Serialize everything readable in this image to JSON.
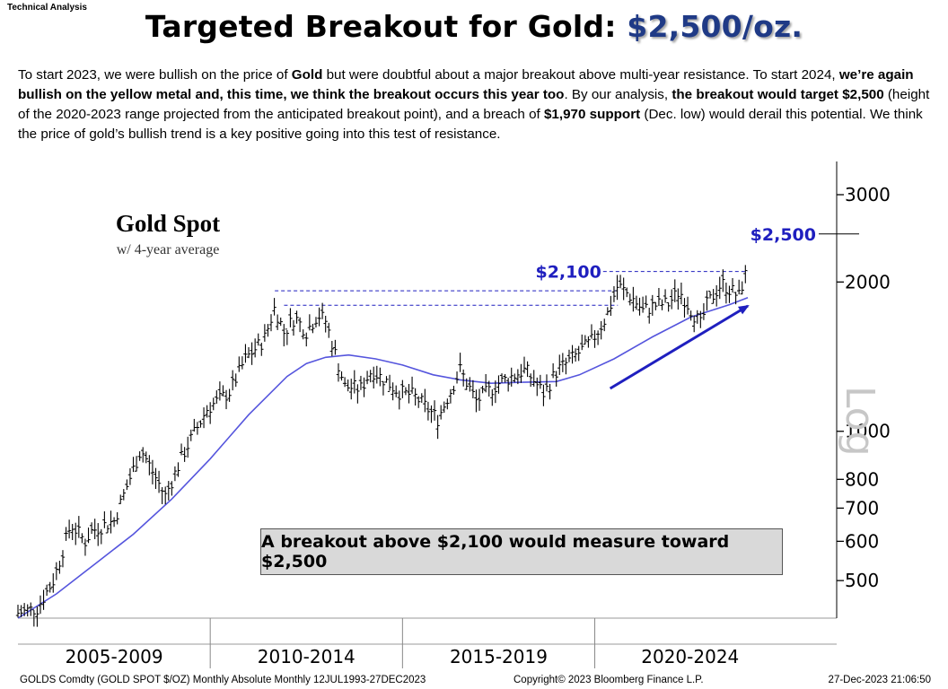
{
  "header": {
    "section_tag": "Technical Analysis",
    "title_prefix": "Targeted Breakout for Gold: ",
    "title_target": "$2,500/oz."
  },
  "intro": {
    "p1": "To start 2023, we were bullish on the price of ",
    "p2": "Gold",
    "p3": " but were doubtful about a major breakout above multi-year resistance.  To start 2024, ",
    "p4": "we’re again bullish on the yellow metal and, this time, we think the breakout occurs this year too",
    "p5": ".  By our analysis, ",
    "p6": "the breakout would target $2,500",
    "p7": " (height of the 2020-2023 range projected from the anticipated breakout point), and a breach of ",
    "p8": "$1,970 support",
    "p9": " (Dec. low) would derail this potential.  We think the price of gold’s bullish trend is a key positive going into this test of resistance."
  },
  "colors": {
    "accent": "#1f1fbf",
    "moving_average": "#5555dd",
    "price": "#000000",
    "callout_bg": "#d9d9d9"
  },
  "chart_data": {
    "type": "line",
    "title": "Gold Spot",
    "subtitle": "w/ 4-year average",
    "scale": "log",
    "scale_label": "Log",
    "ylim": [
      420,
      3500
    ],
    "y_ticks": [
      3000,
      2000,
      1000,
      800,
      700,
      600,
      500
    ],
    "x_range": [
      2005,
      2024.96
    ],
    "x_categories": [
      "2005-2009",
      "2010-2014",
      "2015-2019",
      "2020-2024"
    ],
    "x_dividers": [
      2010,
      2015,
      2020
    ],
    "price_series": {
      "name": "Gold Spot (monthly)",
      "points": [
        [
          2005.0,
          430
        ],
        [
          2005.5,
          440
        ],
        [
          2005.92,
          500
        ],
        [
          2006.38,
          650
        ],
        [
          2006.75,
          600
        ],
        [
          2006.92,
          630
        ],
        [
          2007.5,
          660
        ],
        [
          2007.9,
          800
        ],
        [
          2008.2,
          920
        ],
        [
          2008.83,
          740
        ],
        [
          2009.3,
          900
        ],
        [
          2009.92,
          1110
        ],
        [
          2010.5,
          1200
        ],
        [
          2010.92,
          1400
        ],
        [
          2011.4,
          1530
        ],
        [
          2011.68,
          1780
        ],
        [
          2011.92,
          1580
        ],
        [
          2012.2,
          1700
        ],
        [
          2012.5,
          1590
        ],
        [
          2012.8,
          1720
        ],
        [
          2013.0,
          1670
        ],
        [
          2013.5,
          1230
        ],
        [
          2013.92,
          1220
        ],
        [
          2014.2,
          1330
        ],
        [
          2014.92,
          1200
        ],
        [
          2015.3,
          1180
        ],
        [
          2015.92,
          1060
        ],
        [
          2016.5,
          1330
        ],
        [
          2016.92,
          1150
        ],
        [
          2017.5,
          1250
        ],
        [
          2017.92,
          1300
        ],
        [
          2018.2,
          1330
        ],
        [
          2018.68,
          1190
        ],
        [
          2019.0,
          1320
        ],
        [
          2019.5,
          1420
        ],
        [
          2019.92,
          1520
        ],
        [
          2020.3,
          1700
        ],
        [
          2020.6,
          1970
        ],
        [
          2021.0,
          1850
        ],
        [
          2021.25,
          1750
        ],
        [
          2021.6,
          1800
        ],
        [
          2021.92,
          1810
        ],
        [
          2022.2,
          1920
        ],
        [
          2022.75,
          1640
        ],
        [
          2022.92,
          1800
        ],
        [
          2023.3,
          1990
        ],
        [
          2023.75,
          1870
        ],
        [
          2023.9,
          2060
        ],
        [
          2023.98,
          2075
        ]
      ]
    },
    "moving_average": {
      "name": "4-year average",
      "points": [
        [
          2005.0,
          420
        ],
        [
          2006.0,
          470
        ],
        [
          2007.0,
          540
        ],
        [
          2008.0,
          620
        ],
        [
          2009.0,
          730
        ],
        [
          2010.0,
          880
        ],
        [
          2011.0,
          1080
        ],
        [
          2012.0,
          1290
        ],
        [
          2012.5,
          1370
        ],
        [
          2013.0,
          1410
        ],
        [
          2013.6,
          1425
        ],
        [
          2014.3,
          1400
        ],
        [
          2015.0,
          1360
        ],
        [
          2015.8,
          1300
        ],
        [
          2016.5,
          1270
        ],
        [
          2017.3,
          1250
        ],
        [
          2018.0,
          1255
        ],
        [
          2019.0,
          1260
        ],
        [
          2019.6,
          1300
        ],
        [
          2020.5,
          1400
        ],
        [
          2021.5,
          1550
        ],
        [
          2022.5,
          1700
        ],
        [
          2023.5,
          1800
        ],
        [
          2023.98,
          1860
        ]
      ]
    },
    "resistance_lines": [
      {
        "label": "",
        "value": 1920,
        "from": 2011.68,
        "to": 2020.6
      },
      {
        "label": "",
        "value": 1795,
        "from": 2011.92,
        "to": 2020.6
      },
      {
        "label": "$2,100",
        "value": 2100,
        "from": 2020.45,
        "to": 2023.98
      }
    ],
    "target": {
      "label": "$2,500",
      "value": 2500
    },
    "trend_arrow": {
      "from": [
        2020.4,
        1220
      ],
      "to": [
        2023.98,
        1790
      ]
    },
    "callout": "A breakout above $2,100 would measure toward $2,500"
  },
  "footer": {
    "left": "GOLDS Comdty (GOLD SPOT $/OZ) Monthly Absolute  Monthly 12JUL1993-27DEC2023",
    "center": "Copyright© 2023 Bloomberg Finance L.P.",
    "right": "27-Dec-2023 21:06:50"
  }
}
